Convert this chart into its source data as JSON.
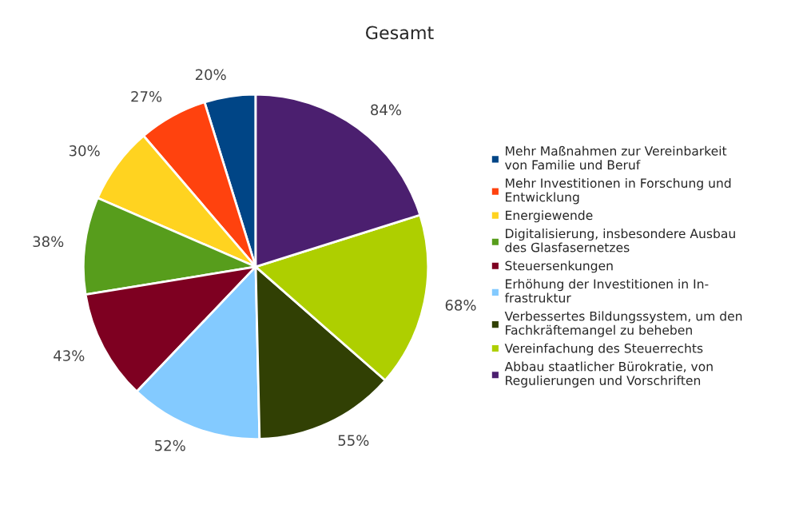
{
  "chart_data": {
    "type": "pie",
    "title": "Gesamt",
    "categories": [
      "Mehr Maßnahmen zur Vereinbarkeit\nvon Familie und Beruf",
      "Mehr Investitionen in Forschung und\nEntwicklung",
      "Energiewende",
      "Digitalisierung, insbesondere Ausbau\ndes Glasfasernetzes",
      "Steuersenkungen",
      "Erhöhung der Investitionen in In-\nfrastruktur",
      "Verbessertes Bildungssystem, um den\nFachkräftemangel zu beheben",
      "Vereinfachung des Steuerrechts",
      "Abbau staatlicher Bürokratie, von\nRegulierungen und Vorschriften"
    ],
    "values": [
      20,
      27,
      30,
      38,
      43,
      52,
      55,
      68,
      84
    ],
    "value_labels": [
      "20%",
      "27%",
      "30%",
      "38%",
      "43%",
      "52%",
      "55%",
      "68%",
      "84%"
    ],
    "colors": [
      "#004586",
      "#ff420e",
      "#ffd320",
      "#579d1c",
      "#7e0021",
      "#83caff",
      "#314004",
      "#aecf00",
      "#4b1f6f"
    ],
    "legend": "right"
  }
}
